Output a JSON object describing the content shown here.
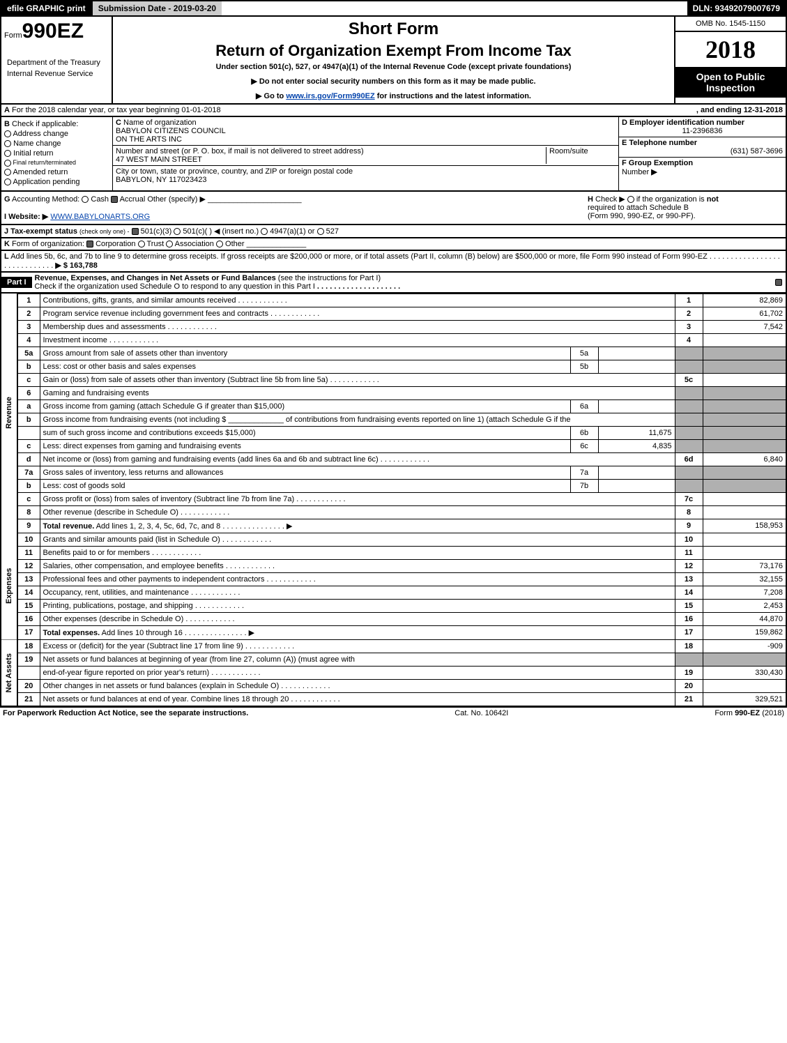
{
  "topbar": {
    "print_btn": "efile GRAPHIC print",
    "submission": "Submission Date - 2019-03-20",
    "dln": "DLN: 93492079007679"
  },
  "header": {
    "form_prefix": "Form",
    "form_code": "990EZ",
    "short_form": "Short Form",
    "title": "Return of Organization Exempt From Income Tax",
    "subtitle": "Under section 501(c), 527, or 4947(a)(1) of the Internal Revenue Code (except private foundations)",
    "notice1": "▶ Do not enter social security numbers on this form as it may be made public.",
    "notice2_pre": "▶ Go to ",
    "notice2_link": "www.irs.gov/Form990EZ",
    "notice2_post": " for instructions and the latest information.",
    "dept1": "Department of the Treasury",
    "dept2": "Internal Revenue Service",
    "omb": "OMB No. 1545-1150",
    "year": "2018",
    "open_public1": "Open to Public",
    "open_public2": "Inspection"
  },
  "line_a": {
    "label_a": "A",
    "text": "For the 2018 calendar year, or tax year beginning 01-01-2018",
    "ending": ", and ending 12-31-2018"
  },
  "section_b": {
    "label": "B",
    "check_if": "Check if applicable:",
    "items": [
      "Address change",
      "Name change",
      "Initial return",
      "Final return/terminated",
      "Amended return",
      "Application pending"
    ]
  },
  "section_c": {
    "label": "C",
    "name_label": "Name of organization",
    "name1": "BABYLON CITIZENS COUNCIL",
    "name2": "ON THE ARTS INC",
    "addr_label": "Number and street (or P. O. box, if mail is not delivered to street address)",
    "room_label": "Room/suite",
    "addr": "47 WEST MAIN STREET",
    "city_label": "City or town, state or province, country, and ZIP or foreign postal code",
    "city": "BABYLON, NY  117023423"
  },
  "section_d": {
    "ein_label": "D Employer identification number",
    "ein": "11-2396836",
    "tel_label": "E Telephone number",
    "tel": "(631) 587-3696",
    "group_label": "F Group Exemption",
    "group_num_label": "Number",
    "group_arrow": "▶"
  },
  "line_g": {
    "label": "G",
    "text": "Accounting Method:",
    "cash": "Cash",
    "accrual": "Accrual",
    "other": "Other (specify) ▶"
  },
  "line_h": {
    "label": "H",
    "text1": "Check ▶",
    "text2": "if the organization is ",
    "not": "not",
    "text3": "required to attach Schedule B",
    "text4": "(Form 990, 990-EZ, or 990-PF)."
  },
  "line_i": {
    "label": "I Website: ▶",
    "url": "WWW.BABYLONARTS.ORG"
  },
  "line_j": {
    "label": "J Tax-exempt status",
    "hint": "(check only one) -",
    "opt1": "501(c)(3)",
    "opt2": "501(c)(  ) ◀ (insert no.)",
    "opt3": "4947(a)(1) or",
    "opt4": "527"
  },
  "line_k": {
    "label": "K",
    "text": "Form of organization:",
    "corp": "Corporation",
    "trust": "Trust",
    "assoc": "Association",
    "other": "Other"
  },
  "line_l": {
    "label": "L",
    "text": "Add lines 5b, 6c, and 7b to line 9 to determine gross receipts. If gross receipts are $200,000 or more, or if total assets (Part II, column (B) below) are $500,000 or more, file Form 990 instead of Form 990-EZ",
    "amount": "▶ $ 163,788"
  },
  "part1": {
    "label": "Part I",
    "title": "Revenue, Expenses, and Changes in Net Assets or Fund Balances",
    "hint": "(see the instructions for Part I)",
    "check_text": "Check if the organization used Schedule O to respond to any question in this Part I"
  },
  "sections": {
    "revenue": "Revenue",
    "expenses": "Expenses",
    "net_assets": "Net Assets"
  },
  "rows": [
    {
      "n": "1",
      "desc": "Contributions, gifts, grants, and similar amounts received",
      "rn": "1",
      "rv": "82,869"
    },
    {
      "n": "2",
      "desc": "Program service revenue including government fees and contracts",
      "rn": "2",
      "rv": "61,702"
    },
    {
      "n": "3",
      "desc": "Membership dues and assessments",
      "rn": "3",
      "rv": "7,542"
    },
    {
      "n": "4",
      "desc": "Investment income",
      "rn": "4",
      "rv": ""
    },
    {
      "n": "5a",
      "desc": "Gross amount from sale of assets other than inventory",
      "mn": "5a",
      "mv": "",
      "gray": true
    },
    {
      "n": "b",
      "desc": "Less: cost or other basis and sales expenses",
      "mn": "5b",
      "mv": "",
      "gray": true
    },
    {
      "n": "c",
      "desc": "Gain or (loss) from sale of assets other than inventory (Subtract line 5b from line 5a)",
      "rn": "5c",
      "rv": ""
    },
    {
      "n": "6",
      "desc": "Gaming and fundraising events",
      "nogrid": true
    },
    {
      "n": "a",
      "desc": "Gross income from gaming (attach Schedule G if greater than $15,000)",
      "mn": "6a",
      "mv": "",
      "gray": true
    },
    {
      "n": "b",
      "desc": "Gross income from fundraising events (not including $ _____________ of contributions from fundraising events reported on line 1) (attach Schedule G if the",
      "nogrid": true,
      "gray": true
    },
    {
      "n": "",
      "desc": "sum of such gross income and contributions exceeds $15,000)",
      "mn": "6b",
      "mv": "11,675",
      "gray": true
    },
    {
      "n": "c",
      "desc": "Less: direct expenses from gaming and fundraising events",
      "mn": "6c",
      "mv": "4,835",
      "gray": true
    },
    {
      "n": "d",
      "desc": "Net income or (loss) from gaming and fundraising events (add lines 6a and 6b and subtract line 6c)",
      "rn": "6d",
      "rv": "6,840"
    },
    {
      "n": "7a",
      "desc": "Gross sales of inventory, less returns and allowances",
      "mn": "7a",
      "mv": "",
      "gray": true
    },
    {
      "n": "b",
      "desc": "Less: cost of goods sold",
      "mn": "7b",
      "mv": "",
      "gray": true
    },
    {
      "n": "c",
      "desc": "Gross profit or (loss) from sales of inventory (Subtract line 7b from line 7a)",
      "rn": "7c",
      "rv": ""
    },
    {
      "n": "8",
      "desc": "Other revenue (describe in Schedule O)",
      "rn": "8",
      "rv": ""
    },
    {
      "n": "9",
      "desc": "Total revenue. Add lines 1, 2, 3, 4, 5c, 6d, 7c, and 8",
      "rn": "9",
      "rv": "158,953",
      "bold": true,
      "arrow": true
    }
  ],
  "exp_rows": [
    {
      "n": "10",
      "desc": "Grants and similar amounts paid (list in Schedule O)",
      "rn": "10",
      "rv": ""
    },
    {
      "n": "11",
      "desc": "Benefits paid to or for members",
      "rn": "11",
      "rv": ""
    },
    {
      "n": "12",
      "desc": "Salaries, other compensation, and employee benefits",
      "rn": "12",
      "rv": "73,176"
    },
    {
      "n": "13",
      "desc": "Professional fees and other payments to independent contractors",
      "rn": "13",
      "rv": "32,155"
    },
    {
      "n": "14",
      "desc": "Occupancy, rent, utilities, and maintenance",
      "rn": "14",
      "rv": "7,208"
    },
    {
      "n": "15",
      "desc": "Printing, publications, postage, and shipping",
      "rn": "15",
      "rv": "2,453"
    },
    {
      "n": "16",
      "desc": "Other expenses (describe in Schedule O)",
      "rn": "16",
      "rv": "44,870"
    },
    {
      "n": "17",
      "desc": "Total expenses. Add lines 10 through 16",
      "rn": "17",
      "rv": "159,862",
      "bold": true,
      "arrow": true
    }
  ],
  "na_rows": [
    {
      "n": "18",
      "desc": "Excess or (deficit) for the year (Subtract line 17 from line 9)",
      "rn": "18",
      "rv": "-909"
    },
    {
      "n": "19",
      "desc": "Net assets or fund balances at beginning of year (from line 27, column (A)) (must agree with",
      "nogrid": true
    },
    {
      "n": "",
      "desc": "end-of-year figure reported on prior year's return)",
      "rn": "19",
      "rv": "330,430"
    },
    {
      "n": "20",
      "desc": "Other changes in net assets or fund balances (explain in Schedule O)",
      "rn": "20",
      "rv": ""
    },
    {
      "n": "21",
      "desc": "Net assets or fund balances at end of year. Combine lines 18 through 20",
      "rn": "21",
      "rv": "329,521",
      "arrow": true
    }
  ],
  "footer": {
    "left": "For Paperwork Reduction Act Notice, see the separate instructions.",
    "mid": "Cat. No. 10642I",
    "right": "Form 990-EZ (2018)"
  },
  "colors": {
    "black": "#000000",
    "white": "#ffffff",
    "gray_bg": "#b0b0b0",
    "gray_btn": "#cccccc",
    "link": "#0645ad"
  }
}
